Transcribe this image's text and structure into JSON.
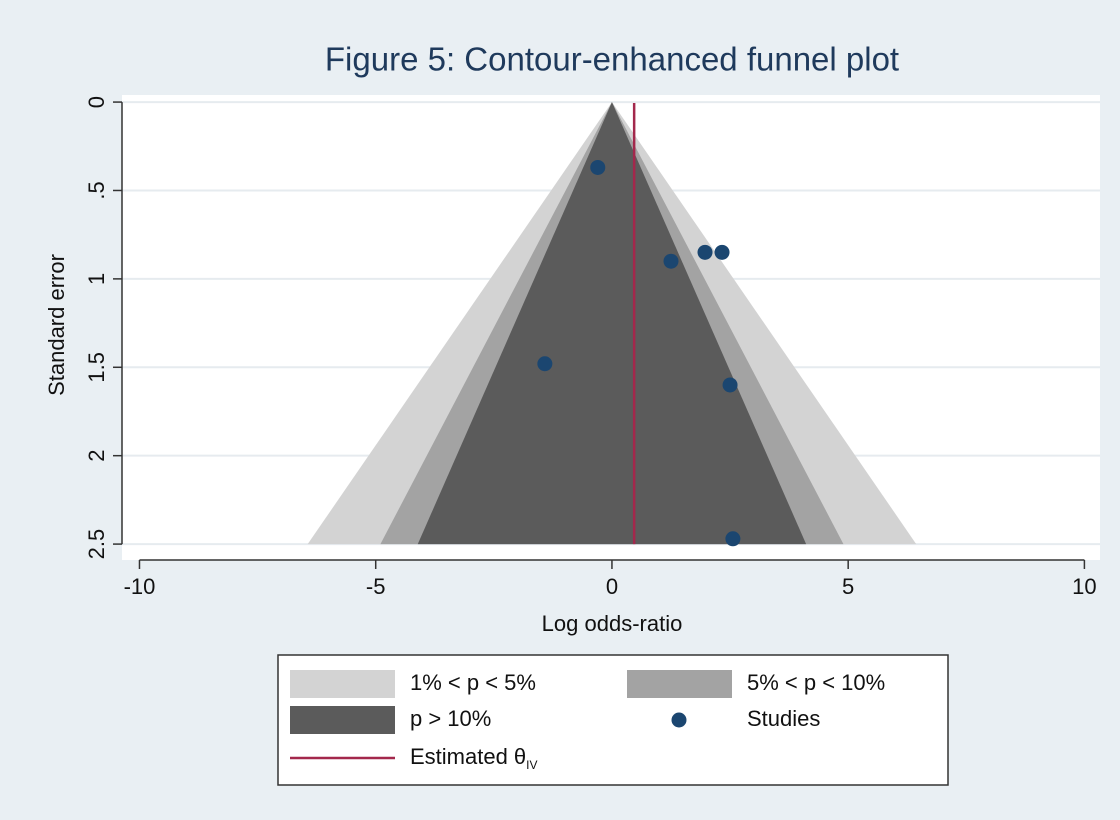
{
  "chart_data": {
    "type": "funnel",
    "title": "Figure 5: Contour-enhanced funnel plot",
    "x_label": "Log odds-ratio",
    "y_label": "Standard error",
    "xlim": [
      -10.37,
      10.33
    ],
    "xticks": [
      -10,
      -5,
      0,
      5,
      10
    ],
    "ylim": [
      -0.04,
      2.59
    ],
    "yticks": [
      0,
      {
        "value": 0.5,
        "label": ".5"
      },
      1,
      1.5,
      2,
      2.5
    ],
    "y_reversed": true,
    "grid": true,
    "se_max": 2.5,
    "contours": [
      {
        "name": "1% < p < 5%",
        "color": "#d3d3d3",
        "half_width": 6.44
      },
      {
        "name": "5% < p < 10%",
        "color": "#a3a3a3",
        "half_width": 4.9
      },
      {
        "name": "p > 10%",
        "color": "#5b5b5b",
        "half_width": 4.11
      }
    ],
    "series": [
      {
        "name": "Studies",
        "color": "#1b4670",
        "x": [
          -0.3,
          1.25,
          1.97,
          2.33,
          -1.42,
          2.5,
          2.56
        ],
        "values": [
          0.37,
          0.9,
          0.85,
          0.85,
          1.48,
          1.6,
          2.47
        ]
      }
    ],
    "estimate": {
      "name": "Estimated θ",
      "subscript": "IV",
      "value": 0.47,
      "color": "#a3284c"
    }
  }
}
